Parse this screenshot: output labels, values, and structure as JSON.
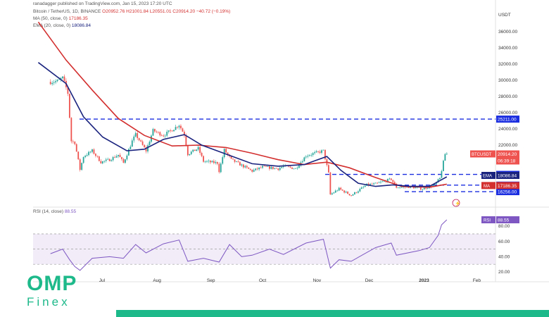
{
  "chart_data": [
    {
      "type": "candlestick",
      "header": {
        "publisher": "ranadagger published on TradingView.com, Jan 15, 2023 17:20 UTC",
        "symbol": "Bitcoin / TetherUS, 1D, BINANCE",
        "ohlc": "O20952.76 H21001.84 L20551.01 C20914.20 −40.72 (−0.19%)",
        "ma50": "MA (50, close, 0)",
        "ma50_value": "17186.35",
        "ema20": "EMA (20, close, 0)",
        "ema20_value": "18086.84"
      },
      "y_axis_unit": "USDT",
      "y_ticks": [
        "36000.00",
        "34000.00",
        "32000.00",
        "30000.00",
        "28000.00",
        "26000.00",
        "24000.00",
        "22000.00"
      ],
      "x_ticks": [
        "Jul",
        "Aug",
        "Sep",
        "Oct",
        "Nov",
        "Dec",
        "2023",
        "Feb"
      ],
      "horizontal_levels": [
        {
          "label": "25211.00",
          "value": 25211
        },
        {
          "label": "18388.00",
          "value": 18388
        },
        {
          "label": "17061.00",
          "value": 17061
        },
        {
          "label": "16256.00",
          "value": 16256
        }
      ],
      "price_tags": [
        {
          "name": "BTCUSDT",
          "value": "20914.20",
          "sub": "06:39:18"
        },
        {
          "name": "EMA",
          "value": "18086.84"
        },
        {
          "name": "MA",
          "value": "17186.35"
        }
      ],
      "close_series": [
        {
          "x": "2022-06-01",
          "y": 29800
        },
        {
          "x": "2022-06-05",
          "y": 29900
        },
        {
          "x": "2022-06-08",
          "y": 30300
        },
        {
          "x": "2022-06-10",
          "y": 29100
        },
        {
          "x": "2022-06-11",
          "y": 28400
        },
        {
          "x": "2022-06-13",
          "y": 22500
        },
        {
          "x": "2022-06-15",
          "y": 22300
        },
        {
          "x": "2022-06-18",
          "y": 19000
        },
        {
          "x": "2022-06-20",
          "y": 20600
        },
        {
          "x": "2022-06-25",
          "y": 21300
        },
        {
          "x": "2022-06-30",
          "y": 19900
        },
        {
          "x": "2022-07-05",
          "y": 20200
        },
        {
          "x": "2022-07-10",
          "y": 20800
        },
        {
          "x": "2022-07-13",
          "y": 19800
        },
        {
          "x": "2022-07-18",
          "y": 22500
        },
        {
          "x": "2022-07-20",
          "y": 23300
        },
        {
          "x": "2022-07-26",
          "y": 21300
        },
        {
          "x": "2022-07-30",
          "y": 23800
        },
        {
          "x": "2022-08-05",
          "y": 23200
        },
        {
          "x": "2022-08-10",
          "y": 23900
        },
        {
          "x": "2022-08-14",
          "y": 24500
        },
        {
          "x": "2022-08-17",
          "y": 23300
        },
        {
          "x": "2022-08-19",
          "y": 20900
        },
        {
          "x": "2022-08-25",
          "y": 21600
        },
        {
          "x": "2022-08-28",
          "y": 20000
        },
        {
          "x": "2022-09-05",
          "y": 19800
        },
        {
          "x": "2022-09-06",
          "y": 18800
        },
        {
          "x": "2022-09-09",
          "y": 21400
        },
        {
          "x": "2022-09-13",
          "y": 20200
        },
        {
          "x": "2022-09-19",
          "y": 19500
        },
        {
          "x": "2022-09-25",
          "y": 18800
        },
        {
          "x": "2022-10-01",
          "y": 19300
        },
        {
          "x": "2022-10-10",
          "y": 19100
        },
        {
          "x": "2022-10-13",
          "y": 19400
        },
        {
          "x": "2022-10-20",
          "y": 19100
        },
        {
          "x": "2022-10-26",
          "y": 20700
        },
        {
          "x": "2022-11-05",
          "y": 21300
        },
        {
          "x": "2022-11-08",
          "y": 18500
        },
        {
          "x": "2022-11-09",
          "y": 15900
        },
        {
          "x": "2022-11-14",
          "y": 16600
        },
        {
          "x": "2022-11-21",
          "y": 15800
        },
        {
          "x": "2022-11-30",
          "y": 17100
        },
        {
          "x": "2022-12-05",
          "y": 17200
        },
        {
          "x": "2022-12-14",
          "y": 17800
        },
        {
          "x": "2022-12-17",
          "y": 16800
        },
        {
          "x": "2022-12-25",
          "y": 16850
        },
        {
          "x": "2023-01-01",
          "y": 16600
        },
        {
          "x": "2023-01-08",
          "y": 17100
        },
        {
          "x": "2023-01-11",
          "y": 17900
        },
        {
          "x": "2023-01-12",
          "y": 18900
        },
        {
          "x": "2023-01-14",
          "y": 20900
        },
        {
          "x": "2023-01-15",
          "y": 20914
        }
      ],
      "ema20_series": [
        {
          "x": "2022-05-25",
          "y": 32200
        },
        {
          "x": "2022-06-10",
          "y": 29600
        },
        {
          "x": "2022-06-20",
          "y": 25500
        },
        {
          "x": "2022-07-01",
          "y": 23000
        },
        {
          "x": "2022-07-15",
          "y": 21300
        },
        {
          "x": "2022-07-25",
          "y": 21500
        },
        {
          "x": "2022-08-05",
          "y": 22700
        },
        {
          "x": "2022-08-17",
          "y": 23300
        },
        {
          "x": "2022-08-27",
          "y": 22000
        },
        {
          "x": "2022-09-10",
          "y": 20900
        },
        {
          "x": "2022-09-25",
          "y": 19700
        },
        {
          "x": "2022-10-10",
          "y": 19400
        },
        {
          "x": "2022-10-25",
          "y": 19600
        },
        {
          "x": "2022-11-07",
          "y": 20600
        },
        {
          "x": "2022-11-15",
          "y": 18900
        },
        {
          "x": "2022-11-25",
          "y": 17300
        },
        {
          "x": "2022-12-05",
          "y": 16900
        },
        {
          "x": "2022-12-15",
          "y": 17100
        },
        {
          "x": "2022-12-25",
          "y": 16900
        },
        {
          "x": "2023-01-05",
          "y": 16900
        },
        {
          "x": "2023-01-15",
          "y": 18087
        }
      ],
      "ma50_series": [
        {
          "x": "2022-05-25",
          "y": 37200
        },
        {
          "x": "2022-06-10",
          "y": 32500
        },
        {
          "x": "2022-06-25",
          "y": 28800
        },
        {
          "x": "2022-07-10",
          "y": 25300
        },
        {
          "x": "2022-07-25",
          "y": 23200
        },
        {
          "x": "2022-08-10",
          "y": 21900
        },
        {
          "x": "2022-08-25",
          "y": 22000
        },
        {
          "x": "2022-09-10",
          "y": 21700
        },
        {
          "x": "2022-09-25",
          "y": 21000
        },
        {
          "x": "2022-10-10",
          "y": 20200
        },
        {
          "x": "2022-10-25",
          "y": 19600
        },
        {
          "x": "2022-11-07",
          "y": 19900
        },
        {
          "x": "2022-11-20",
          "y": 19200
        },
        {
          "x": "2022-12-05",
          "y": 18000
        },
        {
          "x": "2022-12-20",
          "y": 16900
        },
        {
          "x": "2023-01-05",
          "y": 16800
        },
        {
          "x": "2023-01-15",
          "y": 17186
        }
      ],
      "rsi": {
        "label": "RSI (14, close)",
        "value": "88.55",
        "tag": "RSI",
        "y_ticks": [
          "80.00",
          "60.00",
          "40.00",
          "20.00"
        ],
        "upper_band": 70,
        "lower_band": 30,
        "series": [
          {
            "x": "2022-06-01",
            "y": 44
          },
          {
            "x": "2022-06-08",
            "y": 50
          },
          {
            "x": "2022-06-12",
            "y": 36
          },
          {
            "x": "2022-06-15",
            "y": 27
          },
          {
            "x": "2022-06-18",
            "y": 22
          },
          {
            "x": "2022-06-25",
            "y": 38
          },
          {
            "x": "2022-07-05",
            "y": 40
          },
          {
            "x": "2022-07-13",
            "y": 38
          },
          {
            "x": "2022-07-20",
            "y": 56
          },
          {
            "x": "2022-07-26",
            "y": 45
          },
          {
            "x": "2022-08-05",
            "y": 57
          },
          {
            "x": "2022-08-14",
            "y": 62
          },
          {
            "x": "2022-08-19",
            "y": 34
          },
          {
            "x": "2022-08-28",
            "y": 38
          },
          {
            "x": "2022-09-06",
            "y": 33
          },
          {
            "x": "2022-09-12",
            "y": 56
          },
          {
            "x": "2022-09-19",
            "y": 40
          },
          {
            "x": "2022-09-25",
            "y": 42
          },
          {
            "x": "2022-10-05",
            "y": 50
          },
          {
            "x": "2022-10-13",
            "y": 43
          },
          {
            "x": "2022-10-26",
            "y": 58
          },
          {
            "x": "2022-11-05",
            "y": 63
          },
          {
            "x": "2022-11-09",
            "y": 25
          },
          {
            "x": "2022-11-14",
            "y": 36
          },
          {
            "x": "2022-11-21",
            "y": 34
          },
          {
            "x": "2022-12-05",
            "y": 52
          },
          {
            "x": "2022-12-14",
            "y": 58
          },
          {
            "x": "2022-12-17",
            "y": 42
          },
          {
            "x": "2022-12-30",
            "y": 48
          },
          {
            "x": "2023-01-05",
            "y": 52
          },
          {
            "x": "2023-01-10",
            "y": 68
          },
          {
            "x": "2023-01-12",
            "y": 82
          },
          {
            "x": "2023-01-15",
            "y": 88.55
          }
        ]
      }
    }
  ],
  "brand": {
    "name": "OMP",
    "sub": "Finex",
    "color": "#1eb98a"
  },
  "colors": {
    "up": "#26a69a",
    "down": "#ef5350",
    "ema": "#1a237e",
    "ma": "#d32f2f",
    "rsi": "#7e57c2",
    "level": "#1c2fe0"
  }
}
